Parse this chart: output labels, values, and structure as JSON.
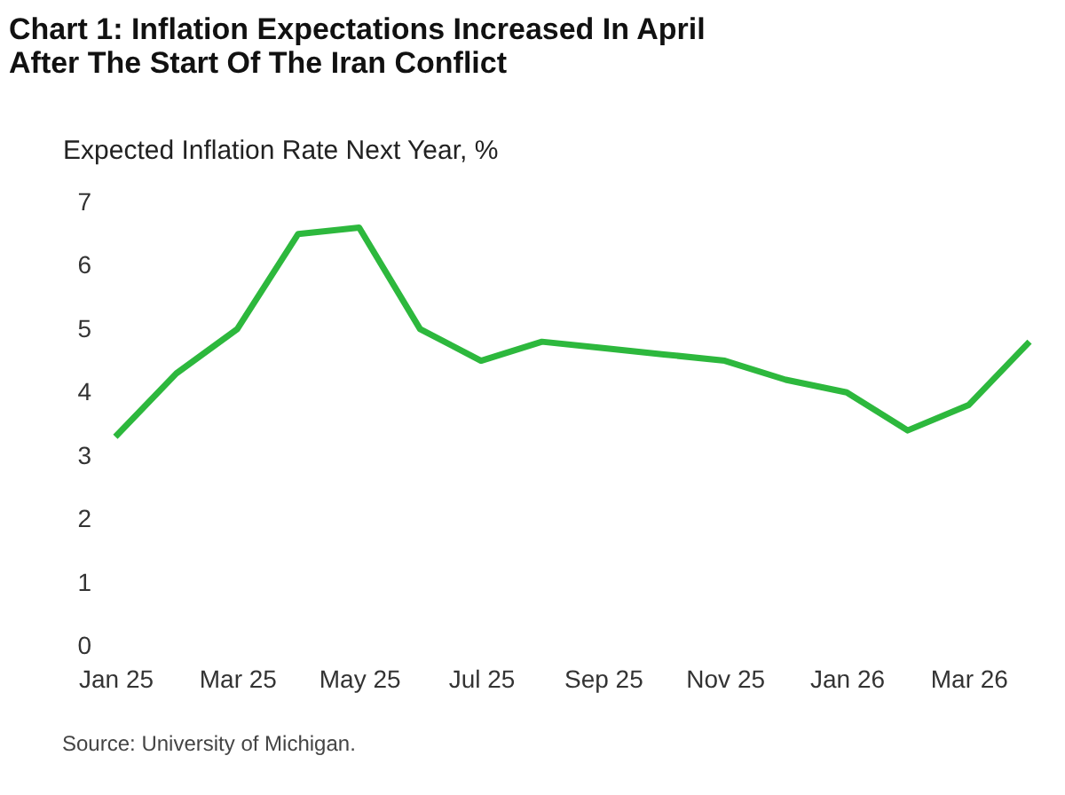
{
  "chart_data": {
    "type": "line",
    "title": [
      "Chart 1: Inflation Expectations Increased In April",
      "After The Start Of The Iran Conflict"
    ],
    "ylabel": "Expected Inflation Rate Next Year, %",
    "categories": [
      "Jan 25",
      null,
      "Mar 25",
      null,
      "May 25",
      null,
      "Jul 25",
      null,
      "Sep 25",
      null,
      "Nov 25",
      null,
      "Jan 26",
      null,
      "Mar 26",
      null
    ],
    "series": [
      {
        "color": "#2db83d",
        "values": [
          3.3,
          4.3,
          5.0,
          6.5,
          6.6,
          5.0,
          4.5,
          4.8,
          4.7,
          4.6,
          4.5,
          4.2,
          4.0,
          3.4,
          3.8,
          4.8
        ]
      }
    ],
    "ylim": [
      0,
      7
    ],
    "yticks": [
      0,
      1,
      2,
      3,
      4,
      5,
      6,
      7
    ],
    "grid": false,
    "marker": "none",
    "line_style": "solid",
    "annotations": [
      "Source: University of Michigan."
    ]
  }
}
